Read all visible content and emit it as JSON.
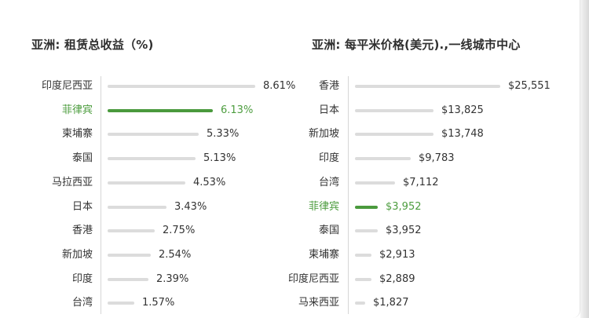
{
  "highlight_color": "#4a9a3d",
  "bar_color": "#dcdcdc",
  "left": {
    "title": "亚洲: 租赁总收益（%)",
    "rows": [
      {
        "label": "印度尼西亚",
        "value": "8.61%",
        "num": 8.61,
        "highlight": false
      },
      {
        "label": "菲律宾",
        "value": "6.13%",
        "num": 6.13,
        "highlight": true
      },
      {
        "label": "柬埔寨",
        "value": "5.33%",
        "num": 5.33,
        "highlight": false
      },
      {
        "label": "泰国",
        "value": "5.13%",
        "num": 5.13,
        "highlight": false
      },
      {
        "label": "马拉西亚",
        "value": "4.53%",
        "num": 4.53,
        "highlight": false
      },
      {
        "label": "日本",
        "value": "3.43%",
        "num": 3.43,
        "highlight": false
      },
      {
        "label": "香港",
        "value": "2.75%",
        "num": 2.75,
        "highlight": false
      },
      {
        "label": "新加坡",
        "value": "2.54%",
        "num": 2.54,
        "highlight": false
      },
      {
        "label": "印度",
        "value": "2.39%",
        "num": 2.39,
        "highlight": false
      },
      {
        "label": "台湾",
        "value": "1.57%",
        "num": 1.57,
        "highlight": false
      }
    ]
  },
  "right": {
    "title": "亚洲: 每平米价格(美元).,一线城市中心",
    "rows": [
      {
        "label": "香港",
        "value": "$25,551",
        "num": 25551,
        "highlight": false
      },
      {
        "label": "日本",
        "value": "$13,825",
        "num": 13825,
        "highlight": false
      },
      {
        "label": "新加坡",
        "value": "$13,748",
        "num": 13748,
        "highlight": false
      },
      {
        "label": "印度",
        "value": "$9,783",
        "num": 9783,
        "highlight": false
      },
      {
        "label": "台湾",
        "value": "$7,112",
        "num": 7112,
        "highlight": false
      },
      {
        "label": "菲律宾",
        "value": "$3,952",
        "num": 3952,
        "highlight": true
      },
      {
        "label": "泰国",
        "value": "$3,952",
        "num": 3952,
        "highlight": false
      },
      {
        "label": "柬埔寨",
        "value": "$2,913",
        "num": 2913,
        "highlight": false
      },
      {
        "label": "印度尼西亚",
        "value": "$2,889",
        "num": 2889,
        "highlight": false
      },
      {
        "label": "马来西亚",
        "value": "$1,827",
        "num": 1827,
        "highlight": false
      }
    ]
  },
  "chart_data": [
    {
      "type": "bar",
      "orientation": "horizontal",
      "title": "亚洲: 租赁总收益（%)",
      "categories": [
        "印度尼西亚",
        "菲律宾",
        "柬埔寨",
        "泰国",
        "马拉西亚",
        "日本",
        "香港",
        "新加坡",
        "印度",
        "台湾"
      ],
      "values": [
        8.61,
        6.13,
        5.33,
        5.13,
        4.53,
        3.43,
        2.75,
        2.54,
        2.39,
        1.57
      ],
      "highlighted": "菲律宾",
      "unit": "%",
      "xlabel": "",
      "ylabel": "",
      "grid": false
    },
    {
      "type": "bar",
      "orientation": "horizontal",
      "title": "亚洲: 每平米价格(美元).,一线城市中心",
      "categories": [
        "香港",
        "日本",
        "新加坡",
        "印度",
        "台湾",
        "菲律宾",
        "泰国",
        "柬埔寨",
        "印度尼西亚",
        "马来西亚"
      ],
      "values": [
        25551,
        13825,
        13748,
        9783,
        7112,
        3952,
        3952,
        2913,
        2889,
        1827
      ],
      "highlighted": "菲律宾",
      "unit": "USD",
      "xlabel": "",
      "ylabel": "",
      "grid": false
    }
  ]
}
